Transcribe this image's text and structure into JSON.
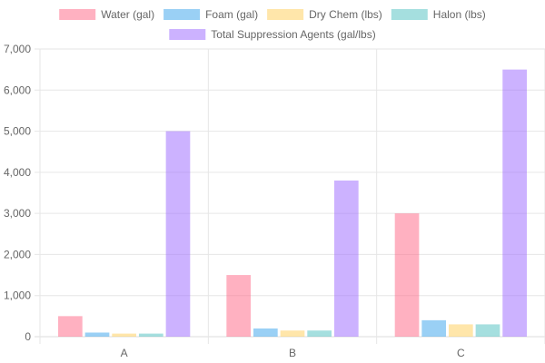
{
  "chart_data": {
    "type": "bar",
    "categories": [
      "A",
      "B",
      "C"
    ],
    "series": [
      {
        "name": "Water (gal)",
        "values": [
          500,
          1500,
          3000
        ],
        "color": "#ff6384",
        "fill": "rgba(255,99,132,0.5)"
      },
      {
        "name": "Foam (gal)",
        "values": [
          100,
          200,
          400
        ],
        "color": "#36a2eb",
        "fill": "rgba(54,162,235,0.5)"
      },
      {
        "name": "Dry Chem (lbs)",
        "values": [
          75,
          150,
          300
        ],
        "color": "#ffcd56",
        "fill": "rgba(255,205,86,0.5)"
      },
      {
        "name": "Halon (lbs)",
        "values": [
          75,
          150,
          300
        ],
        "color": "#4bc0c0",
        "fill": "rgba(75,192,192,0.5)"
      },
      {
        "name": "Total Suppression Agents (gal/lbs)",
        "values": [
          5000,
          3800,
          6500
        ],
        "color": "#9966ff",
        "fill": "rgba(153,102,255,0.5)"
      }
    ],
    "ylim": [
      0,
      7000
    ],
    "yticks": [
      0,
      1000,
      2000,
      3000,
      4000,
      5000,
      6000,
      7000
    ],
    "ytick_labels": [
      "0",
      "1,000",
      "2,000",
      "3,000",
      "4,000",
      "5,000",
      "6,000",
      "7,000"
    ],
    "grid": true,
    "legend_position": "top"
  }
}
